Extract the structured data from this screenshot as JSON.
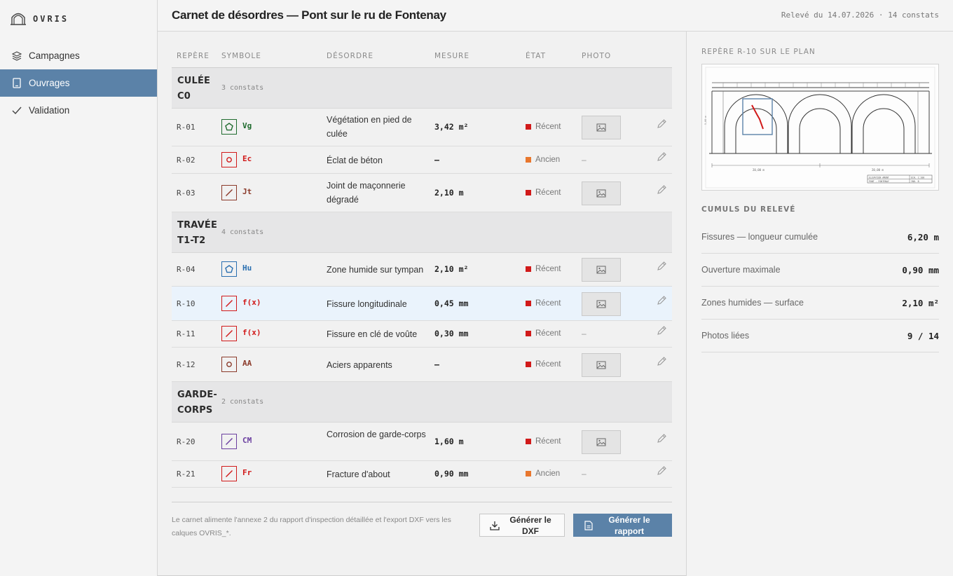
{
  "app": {
    "name": "OVRIS"
  },
  "nav": [
    {
      "label": "Campagnes",
      "icon": "layers-icon",
      "active": false
    },
    {
      "label": "Ouvrages",
      "icon": "tablet-icon",
      "active": true
    },
    {
      "label": "Validation",
      "icon": "check-icon",
      "active": false
    }
  ],
  "header": {
    "title": "Carnet de désordres — Pont sur le ru de Fontenay",
    "meta": "Relevé du 14.07.2026 · 14 constats"
  },
  "table": {
    "columns": [
      "REPÈRE",
      "SYMBOLE",
      "DÉSORDRE",
      "MESURE",
      "ÉTAT",
      "PHOTO"
    ],
    "groups": [
      {
        "name": "CULÉE C0",
        "count": "3 constats",
        "rows": [
          {
            "rep": "R-01",
            "code": "Vg",
            "color": "#1f6b2e",
            "shape": "pentagon",
            "desordre": "Végétation en pied de culée",
            "mesure": "3,42 m²",
            "etat": "Récent",
            "etat_color": "#d11a1a",
            "photo": true
          },
          {
            "rep": "R-02",
            "code": "Ec",
            "color": "#d11a1a",
            "shape": "circle",
            "desordre": "Éclat de béton",
            "mesure": "—",
            "etat": "Ancien",
            "etat_color": "#e8772e",
            "photo": false
          },
          {
            "rep": "R-03",
            "code": "Jt",
            "color": "#8b3a2a",
            "shape": "slash",
            "desordre": "Joint de maçonnerie dégradé",
            "mesure": "2,10 m",
            "etat": "Récent",
            "etat_color": "#d11a1a",
            "photo": true
          }
        ]
      },
      {
        "name": "TRAVÉE T1-T2",
        "count": "4 constats",
        "rows": [
          {
            "rep": "R-04",
            "code": "Hu",
            "color": "#2a6fb0",
            "shape": "pentagon",
            "desordre": "Zone humide sur tympan",
            "mesure": "2,10 m²",
            "etat": "Récent",
            "etat_color": "#d11a1a",
            "photo": true
          },
          {
            "rep": "R-10",
            "code": "f(x)",
            "color": "#d11a1a",
            "shape": "slash",
            "desordre": "Fissure longitudinale",
            "mesure": "0,45 mm",
            "etat": "Récent",
            "etat_color": "#d11a1a",
            "photo": true,
            "selected": true
          },
          {
            "rep": "R-11",
            "code": "f(x)",
            "color": "#d11a1a",
            "shape": "slash",
            "desordre": "Fissure en clé de voûte",
            "mesure": "0,30 mm",
            "etat": "Récent",
            "etat_color": "#d11a1a",
            "photo": false
          },
          {
            "rep": "R-12",
            "code": "AA",
            "color": "#8b3a2a",
            "shape": "circle",
            "desordre": "Aciers apparents",
            "mesure": "—",
            "etat": "Récent",
            "etat_color": "#d11a1a",
            "photo": true
          }
        ]
      },
      {
        "name": "GARDE-CORPS",
        "count": "2 constats",
        "rows": [
          {
            "rep": "R-20",
            "code": "CM",
            "color": "#6b3fa0",
            "shape": "slash",
            "desordre": "Corrosion de garde-corps",
            "mesure": "1,60 m",
            "etat": "Récent",
            "etat_color": "#d11a1a",
            "photo": true
          },
          {
            "rep": "R-21",
            "code": "Fr",
            "color": "#d11a1a",
            "shape": "slash",
            "desordre": "Fracture d'about",
            "mesure": "0,90 mm",
            "etat": "Ancien",
            "etat_color": "#e8772e",
            "photo": false
          }
        ]
      }
    ]
  },
  "footer": {
    "note": "Le carnet alimente l'annexe 2 du rapport d'inspection détaillée et l'export DXF vers les calques OVRIS_*.",
    "btn_dxf": "Générer le DXF",
    "btn_rapport": "Générer le rapport"
  },
  "panel": {
    "plan_label": "REPÈRE R-10 SUR LE PLAN",
    "stats_label": "CUMULS DU RELEVÉ",
    "stats": [
      {
        "label": "Fissures — longueur cumulée",
        "value": "6,20 m"
      },
      {
        "label": "Ouverture maximale",
        "value": "0,90 mm"
      },
      {
        "label": "Zones humides — surface",
        "value": "2,10 m²"
      },
      {
        "label": "Photos liées",
        "value": "9 / 14"
      }
    ]
  },
  "plan": {
    "dim_left": "20,00 m",
    "dim_right": "20,00 m",
    "side": "5,00 m",
    "cartouche_1": "ELEVATION AMONT",
    "cartouche_2": "ECH. 1:100",
    "cartouche_3": "PONT - FONTENAY",
    "cartouche_4": "IND. B"
  },
  "dash": "–"
}
